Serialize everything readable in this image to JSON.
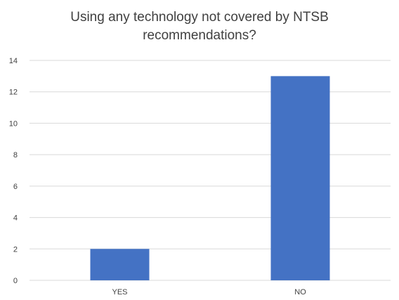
{
  "chart_data": {
    "type": "bar",
    "title": "Using any technology not covered by NTSB recommendations?",
    "title_lines": [
      "Using any technology not covered by NTSB",
      "recommendations?"
    ],
    "categories": [
      "YES",
      "NO"
    ],
    "values": [
      2,
      13
    ],
    "ylim": [
      0,
      14
    ],
    "yticks": [
      0,
      2,
      4,
      6,
      8,
      10,
      12,
      14
    ],
    "grid": true,
    "legend": "none",
    "bar_color": "#4472C4",
    "grid_color": "#d9d9d9"
  }
}
